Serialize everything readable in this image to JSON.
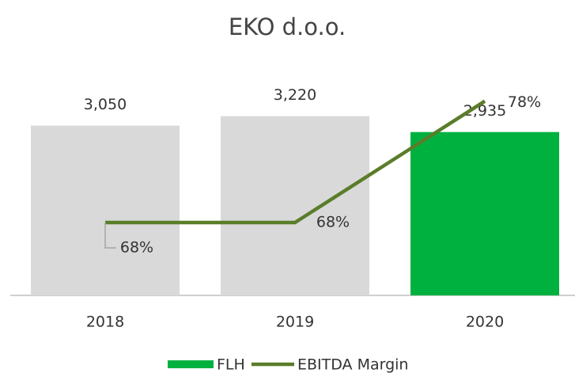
{
  "chart_data": {
    "type": "bar_line",
    "title": "EKO d.o.o.",
    "categories": [
      "2018",
      "2019",
      "2020"
    ],
    "series": [
      {
        "name": "FLH",
        "type": "bar",
        "color": "#00b140",
        "colors": [
          "#d9d9d9",
          "#d9d9d9",
          "#00b140"
        ],
        "values": [
          3050,
          3220,
          2935
        ],
        "value_labels": [
          "3,050",
          "3,220",
          "2,935"
        ]
      },
      {
        "name": "EBITDA Margin",
        "type": "line",
        "axis": "y2",
        "color": "#5a7d2a",
        "values": [
          68,
          68,
          78
        ],
        "value_labels": [
          "68%",
          "68%",
          "78%"
        ]
      }
    ],
    "ylim": [
      0,
      3600
    ],
    "y2lim": [
      62,
      78.5
    ],
    "legend": "bottom"
  }
}
